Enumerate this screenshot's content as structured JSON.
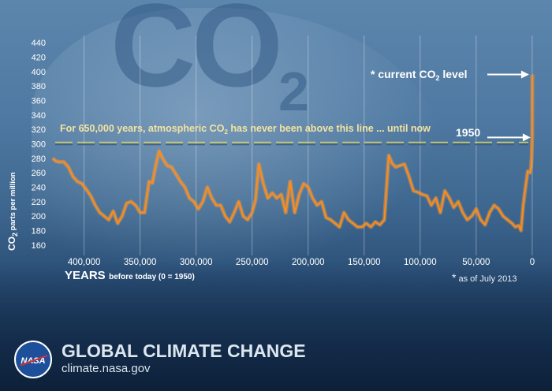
{
  "background_text": {
    "main": "CO",
    "sub": "2"
  },
  "chart_data": {
    "type": "line",
    "xlabel": "YEARS",
    "xlabel_note": "before today (0 = 1950)",
    "ylabel": {
      "main": "CO",
      "sub": "2",
      "rest": " parts per million"
    },
    "xlim": [
      430000,
      -5000
    ],
    "ylim": [
      150,
      450
    ],
    "x_ticks": [
      400000,
      350000,
      300000,
      250000,
      200000,
      150000,
      100000,
      50000,
      0
    ],
    "x_tick_labels": [
      "400,000",
      "350,000",
      "300,000",
      "250,000",
      "200,000",
      "150,000",
      "100,000",
      "50,000",
      "0"
    ],
    "y_ticks": [
      160,
      180,
      200,
      220,
      240,
      260,
      280,
      300,
      320,
      340,
      360,
      380,
      400,
      420,
      440
    ],
    "grid": "vertical",
    "threshold": 300,
    "threshold_label": {
      "pre": "For 650,000 years, atmospheric CO",
      "sub": "2",
      "post": " has never been above this line ... until now"
    },
    "annotations": {
      "current": {
        "pre": "* current CO",
        "sub": "2",
        "post": " level",
        "value": 396
      },
      "year_1950": {
        "label": "1950",
        "value": 311
      }
    },
    "footnote": {
      "star": "*",
      "text": " as of July 2013"
    },
    "x": [
      428000,
      425000,
      422000,
      418000,
      414000,
      410000,
      406000,
      402000,
      398000,
      394000,
      390000,
      386000,
      382000,
      378000,
      374000,
      370000,
      366000,
      362000,
      358000,
      354000,
      350000,
      346000,
      342000,
      339000,
      336000,
      333000,
      330000,
      326000,
      322000,
      318000,
      314000,
      310000,
      306000,
      302000,
      298000,
      294000,
      290000,
      286000,
      282000,
      278000,
      274000,
      270000,
      266000,
      262000,
      258000,
      254000,
      250000,
      247000,
      244000,
      240000,
      236000,
      232000,
      228000,
      224000,
      220000,
      216000,
      212000,
      208000,
      204000,
      200000,
      196000,
      192000,
      188000,
      184000,
      180000,
      176000,
      172000,
      168000,
      164000,
      160000,
      156000,
      152000,
      148000,
      144000,
      140000,
      136000,
      132000,
      130000,
      128000,
      125000,
      122000,
      118000,
      114000,
      110000,
      106000,
      102000,
      98000,
      94000,
      90000,
      86000,
      82000,
      78000,
      74000,
      70000,
      66000,
      62000,
      58000,
      54000,
      50000,
      46000,
      42000,
      38000,
      34000,
      30000,
      26000,
      22000,
      18000,
      15000,
      12000,
      10000,
      8000,
      6000,
      4000,
      2000,
      1000,
      500,
      0,
      -60
    ],
    "values": [
      280,
      276,
      275,
      275,
      268,
      255,
      248,
      245,
      237,
      228,
      215,
      205,
      200,
      195,
      207,
      190,
      200,
      218,
      220,
      215,
      205,
      205,
      248,
      246,
      270,
      290,
      280,
      270,
      268,
      258,
      248,
      240,
      225,
      220,
      210,
      220,
      240,
      225,
      215,
      215,
      200,
      192,
      205,
      220,
      200,
      195,
      205,
      222,
      272,
      245,
      225,
      232,
      225,
      230,
      205,
      248,
      205,
      230,
      245,
      240,
      225,
      215,
      220,
      198,
      195,
      190,
      185,
      205,
      195,
      190,
      185,
      185,
      190,
      185,
      192,
      188,
      195,
      240,
      284,
      273,
      268,
      270,
      272,
      255,
      235,
      233,
      230,
      228,
      215,
      225,
      205,
      235,
      225,
      212,
      220,
      205,
      195,
      200,
      210,
      195,
      188,
      205,
      215,
      210,
      200,
      195,
      190,
      185,
      187,
      180,
      215,
      240,
      262,
      260,
      268,
      282,
      311,
      396
    ]
  },
  "footer": {
    "title": "GLOBAL CLIMATE CHANGE",
    "url": "climate.nasa.gov",
    "logo_text": "NASA"
  }
}
